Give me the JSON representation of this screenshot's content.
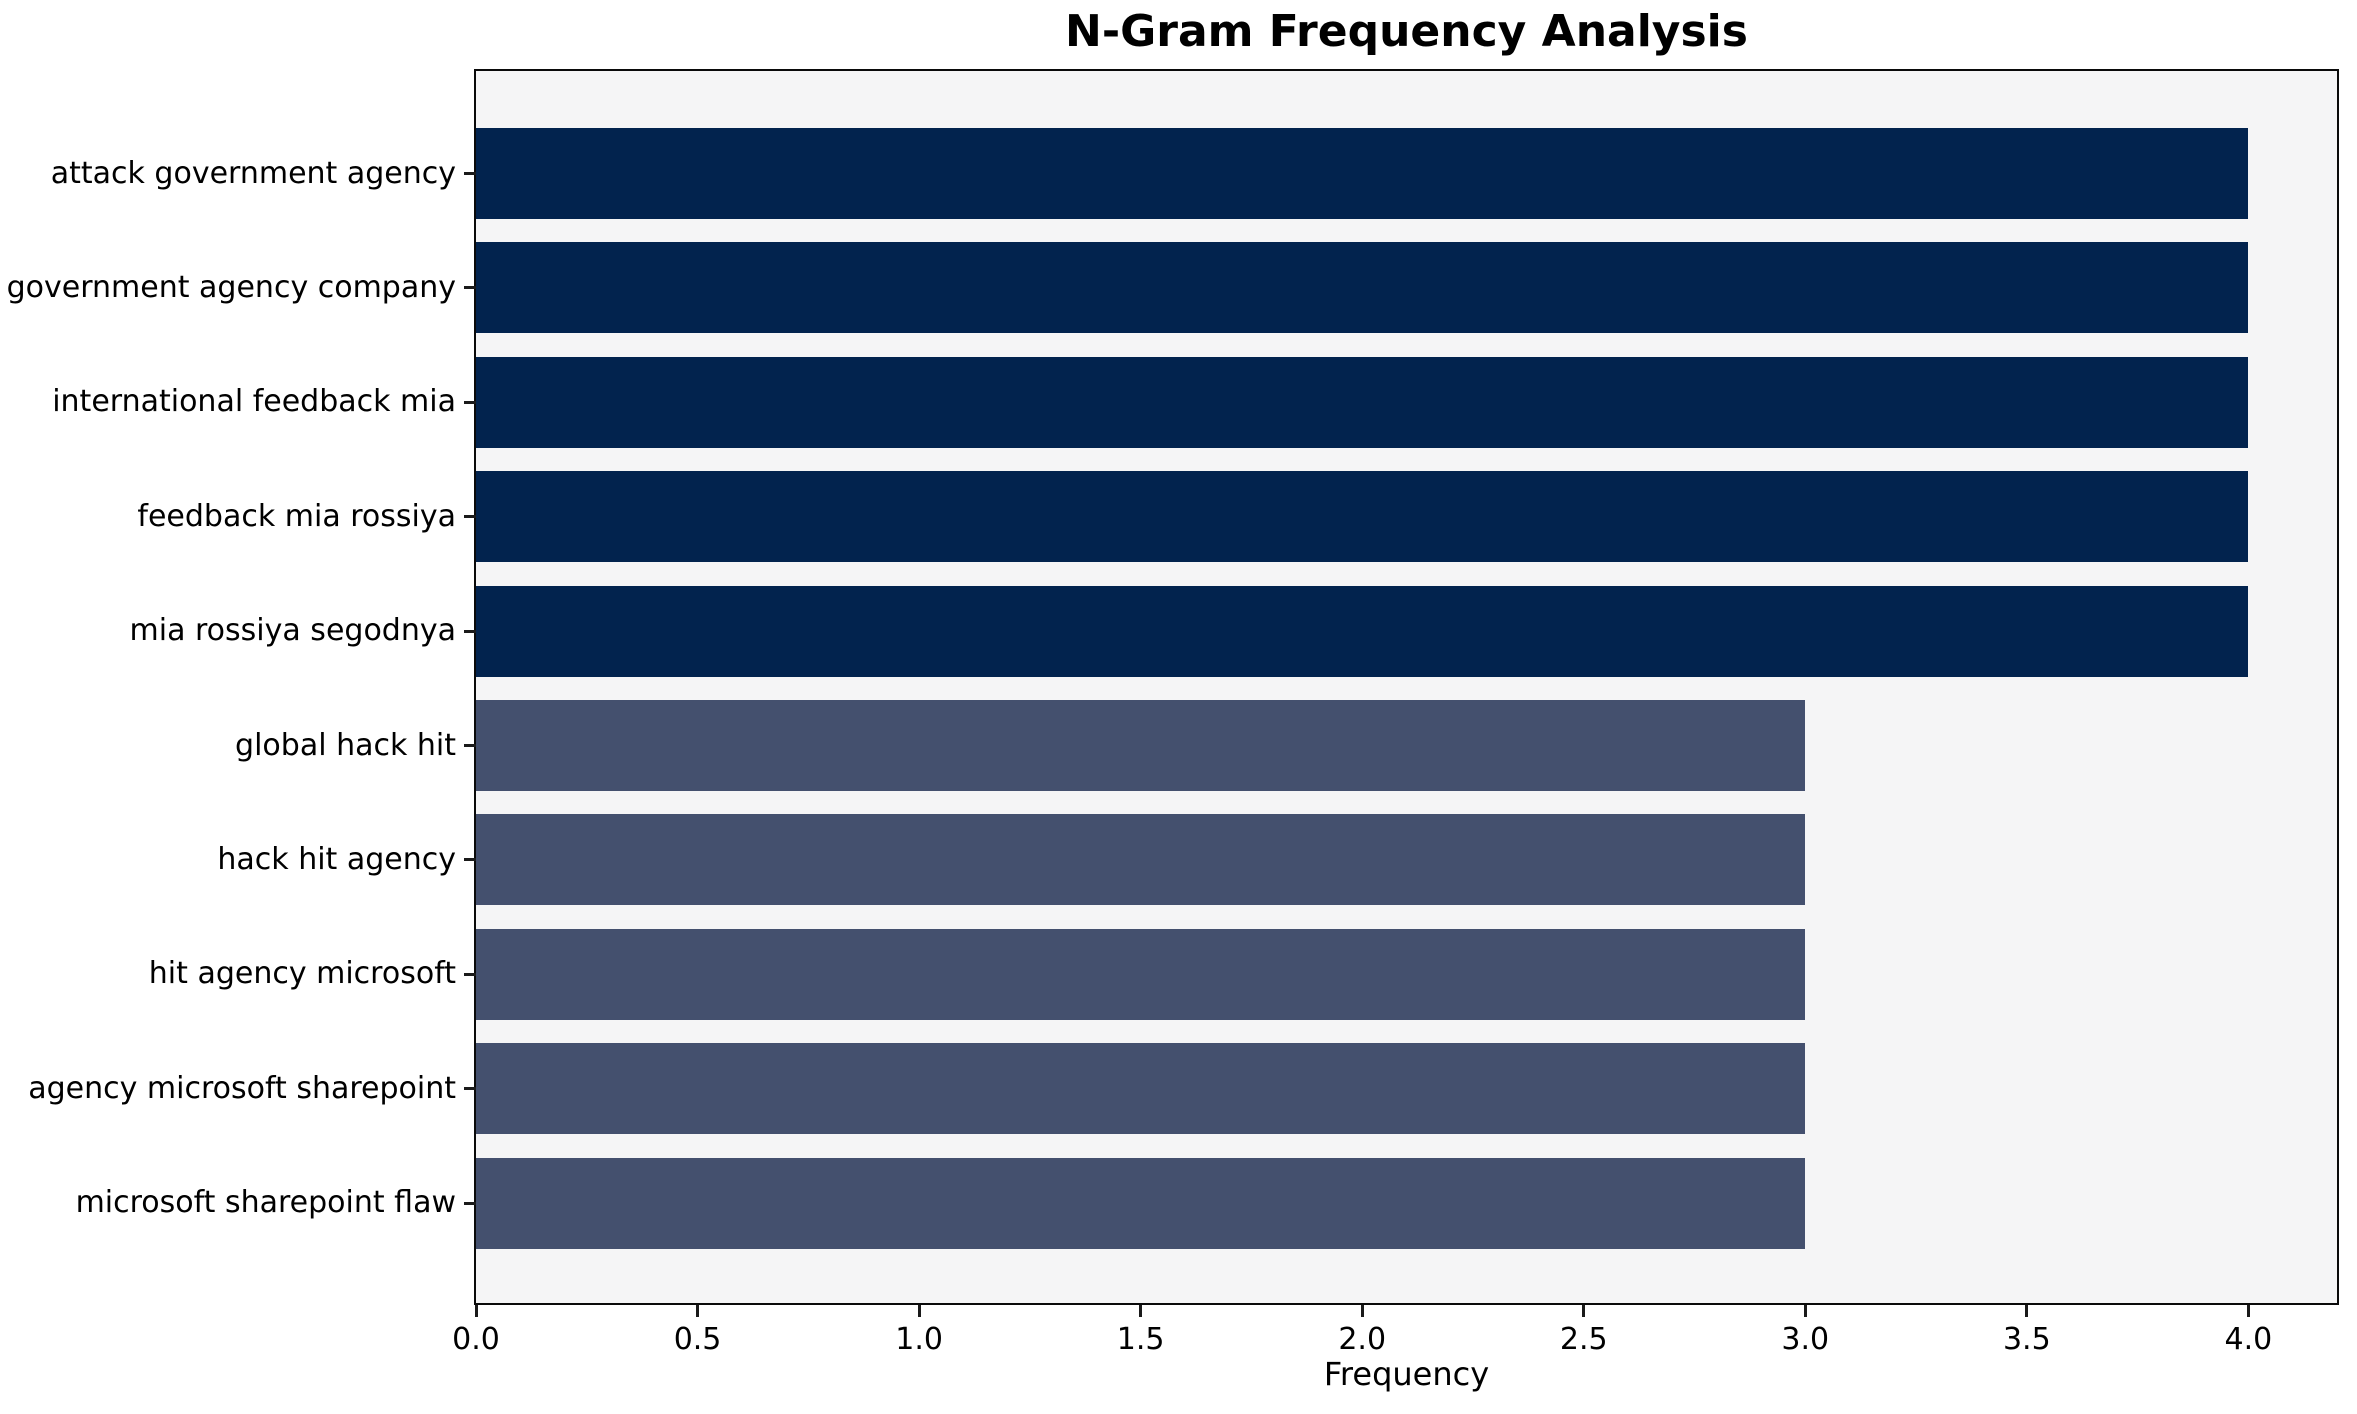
{
  "chart_data": {
    "type": "bar",
    "orientation": "horizontal",
    "title": "N-Gram Frequency Analysis",
    "xlabel": "Frequency",
    "ylabel": "",
    "categories": [
      "attack government agency",
      "government agency company",
      "international feedback mia",
      "feedback mia rossiya",
      "mia rossiya segodnya",
      "global hack hit",
      "hack hit agency",
      "hit agency microsoft",
      "agency microsoft sharepoint",
      "microsoft sharepoint flaw"
    ],
    "values": [
      4,
      4,
      4,
      4,
      4,
      3,
      3,
      3,
      3,
      3
    ],
    "bar_colors": [
      "#02234E",
      "#02234E",
      "#02234E",
      "#02234E",
      "#02234E",
      "#44506E",
      "#44506E",
      "#44506E",
      "#44506E",
      "#44506E"
    ],
    "xlim": [
      0,
      4.2
    ],
    "xticks": [
      "0.0",
      "0.5",
      "1.0",
      "1.5",
      "2.0",
      "2.5",
      "3.0",
      "3.5",
      "4.0"
    ],
    "xtick_values": [
      0,
      0.5,
      1,
      1.5,
      2,
      2.5,
      3,
      3.5,
      4
    ],
    "grid": false,
    "legend": null,
    "colors": {
      "plot_background": "#f5f5f6",
      "figure_background": "#ffffff",
      "spine": "#0a0a0a",
      "tick": "#1a1a1a",
      "text": "#000000"
    }
  }
}
